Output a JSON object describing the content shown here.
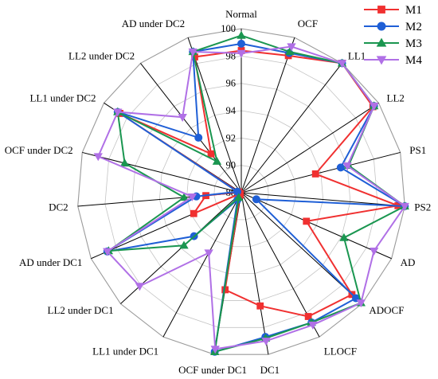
{
  "chart_data": {
    "type": "radar",
    "title": "",
    "categories": [
      "Normal",
      "OCF",
      "LL1",
      "LL2",
      "PS1",
      "PS2",
      "AD",
      "ADOCF",
      "LLOCF",
      "DC1",
      "OCF under DC1",
      "LL1 under DC1",
      "LL2 under DC1",
      "AD under DC1",
      "DC2",
      "OCF under DC2",
      "LL1 under DC2",
      "LL2 under DC2",
      "AD under DC2"
    ],
    "r_ticks": [
      88,
      90,
      92,
      94,
      96,
      98,
      100
    ],
    "rlim": [
      88,
      100
    ],
    "grid": true,
    "legend_position": "top-right",
    "series": [
      {
        "name": "M1",
        "color": "#f03030",
        "marker": "square",
        "values": [
          98.4,
          98.6,
          100,
          99.5,
          93.6,
          99.5,
          93.2,
          99.0,
          98.3,
          96.4,
          95.2,
          88.2,
          88.1,
          91.8,
          90.6,
          88.2,
          98.6,
          91.6,
          98.5
        ]
      },
      {
        "name": "M2",
        "color": "#1f5fd6",
        "marker": "circle",
        "values": [
          98.9,
          98.8,
          100,
          99.6,
          95.5,
          100,
          89.2,
          99.4,
          98.8,
          98.7,
          99.8,
          88.6,
          92.7,
          98.7,
          91.3,
          88.3,
          98.8,
          93.1,
          98.9
        ]
      },
      {
        "name": "M3",
        "color": "#1a9650",
        "marker": "triangle-up",
        "values": [
          99.5,
          98.9,
          100,
          99.6,
          96.1,
          100,
          96.2,
          99.9,
          98.8,
          98.8,
          99.8,
          88.4,
          93.7,
          98.6,
          92.2,
          96.8,
          98.8,
          90.9,
          98.9
        ]
      },
      {
        "name": "M4",
        "color": "#b070e6",
        "marker": "triangle-down",
        "values": [
          98.2,
          99.3,
          100,
          99.6,
          96.0,
          100,
          98.6,
          99.9,
          99.0,
          99.0,
          99.6,
          93.0,
          98.1,
          98.7,
          91.6,
          98.8,
          98.8,
          95.0,
          98.9
        ]
      }
    ]
  }
}
